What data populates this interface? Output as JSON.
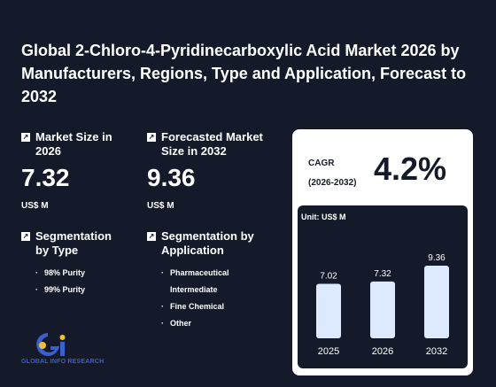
{
  "title": "Global 2-Chloro-4-Pyridinecarboxylic Acid Market 2026 by Manufacturers, Regions, Type and Application, Forecast to 2032",
  "market_size": {
    "label": "Market Size in 2026",
    "value": "7.32",
    "unit": "US$ M"
  },
  "forecast_size": {
    "label": "Forecasted Market Size in 2032",
    "value": "9.36",
    "unit": "US$ M"
  },
  "segment_type": {
    "label": "Segmentation by Type",
    "items": [
      "98% Purity",
      "99% Purity"
    ]
  },
  "segment_application": {
    "label": "Segmentation by Application",
    "items": [
      "Pharmaceutical Intermediate",
      "Fine Chemical",
      "Other"
    ]
  },
  "cagr": {
    "label_line1": "CAGR",
    "label_line2": "(2026-2032)",
    "value": "4.2%"
  },
  "logo": {
    "text": "GLOBAL INFO RESEARCH"
  },
  "colors": {
    "background": "#151a2a",
    "bar": "#dde9ff",
    "logo_blue": "#3a5fcf",
    "logo_yellow": "#f2c230"
  },
  "chart_data": {
    "type": "bar",
    "unit_label": "Unit: US$ M",
    "categories": [
      "2025",
      "2026",
      "2032"
    ],
    "values": [
      7.02,
      7.32,
      9.36
    ],
    "data_labels": [
      "7.02",
      "7.32",
      "9.36"
    ]
  }
}
